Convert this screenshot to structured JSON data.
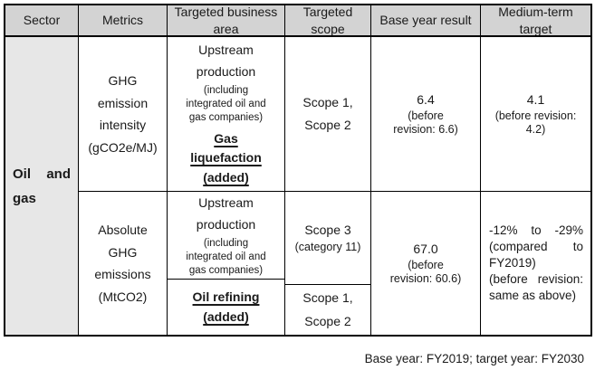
{
  "table": {
    "headers": [
      "Sector",
      "Metrics",
      "Targeted business area",
      "Targeted scope",
      "Base year result",
      "Medium-term target"
    ],
    "sector": "Oil and gas",
    "row1": {
      "metric": "GHG emission intensity (gCO2e/MJ)",
      "business_area": {
        "main": "Upstream production",
        "note": "(including integrated oil and gas companies)",
        "added": "Gas\nliquefaction\n(added)"
      },
      "scope": "Scope 1,\nScope 2",
      "base_result": {
        "value": "6.4",
        "note": "(before\nrevision: 6.6)"
      },
      "target": {
        "value": "4.1",
        "note": "(before revision:\n4.2)"
      }
    },
    "row2": {
      "metric": "Absolute GHG emissions (MtCO2)",
      "business_area_top": {
        "main": "Upstream production",
        "note": "(including integrated oil and gas companies)"
      },
      "business_area_added": "Oil refining\n(added)",
      "scope_top": {
        "main": "Scope 3",
        "note": "(category 11)"
      },
      "scope_bottom": "Scope 1,\nScope 2",
      "base_result": {
        "value": "67.0",
        "note": "(before\nrevision: 60.6)"
      },
      "target": {
        "line1": "-12% to -29% (compared to FY2019)",
        "line2": "(before revision: same as above)"
      }
    }
  },
  "footnote": "Base year: FY2019; target year: FY2030"
}
